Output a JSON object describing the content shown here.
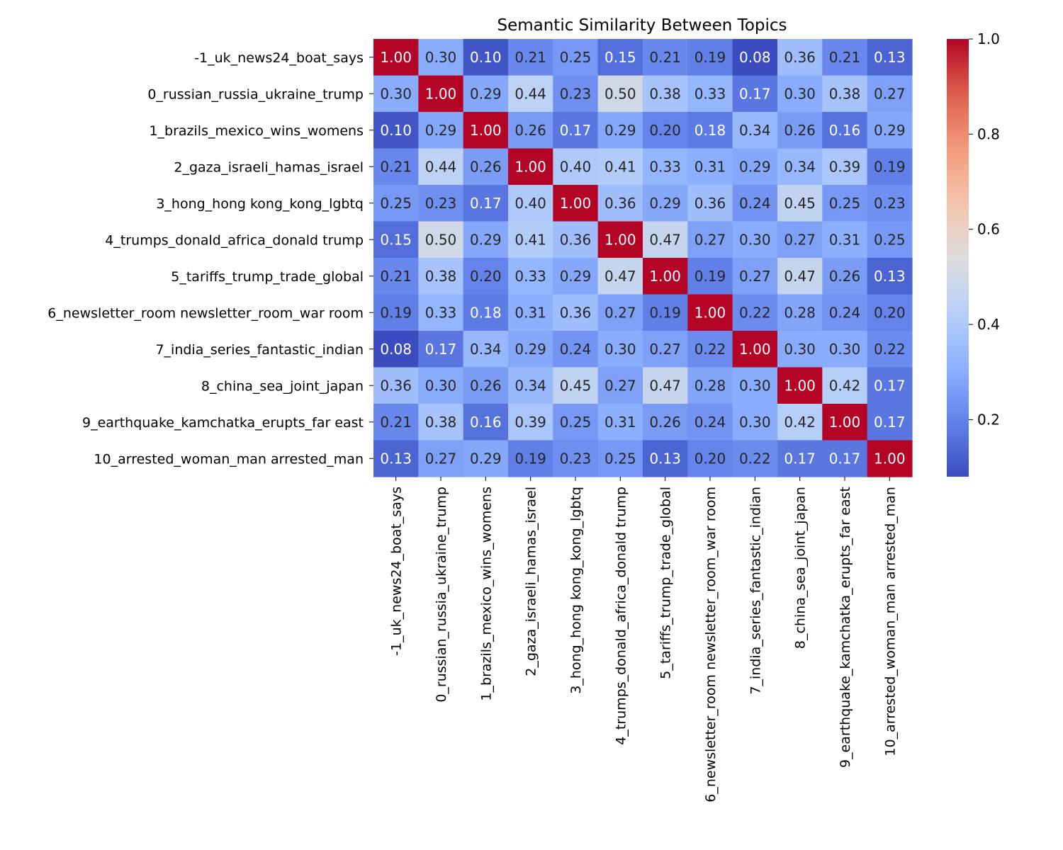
{
  "chart_data": {
    "type": "heatmap",
    "title": "Semantic Similarity Between Topics",
    "xlabel": "",
    "ylabel": "",
    "colormap": "coolwarm",
    "annotation_format": "0.00",
    "labels": [
      "-1_uk_news24_boat_says",
      "0_russian_russia_ukraine_trump",
      "1_brazils_mexico_wins_womens",
      "2_gaza_israeli_hamas_israel",
      "3_hong_hong kong_kong_lgbtq",
      "4_trumps_donald_africa_donald trump",
      "5_tariffs_trump_trade_global",
      "6_newsletter_room newsletter_room_war room",
      "7_india_series_fantastic_indian",
      "8_china_sea_joint_japan",
      "9_earthquake_kamchatka_erupts_far east",
      "10_arrested_woman_man arrested_man"
    ],
    "values": [
      [
        1.0,
        0.3,
        0.1,
        0.21,
        0.25,
        0.15,
        0.21,
        0.19,
        0.08,
        0.36,
        0.21,
        0.13
      ],
      [
        0.3,
        1.0,
        0.29,
        0.44,
        0.23,
        0.5,
        0.38,
        0.33,
        0.17,
        0.3,
        0.38,
        0.27
      ],
      [
        0.1,
        0.29,
        1.0,
        0.26,
        0.17,
        0.29,
        0.2,
        0.18,
        0.34,
        0.26,
        0.16,
        0.29
      ],
      [
        0.21,
        0.44,
        0.26,
        1.0,
        0.4,
        0.41,
        0.33,
        0.31,
        0.29,
        0.34,
        0.39,
        0.19
      ],
      [
        0.25,
        0.23,
        0.17,
        0.4,
        1.0,
        0.36,
        0.29,
        0.36,
        0.24,
        0.45,
        0.25,
        0.23
      ],
      [
        0.15,
        0.5,
        0.29,
        0.41,
        0.36,
        1.0,
        0.47,
        0.27,
        0.3,
        0.27,
        0.31,
        0.25
      ],
      [
        0.21,
        0.38,
        0.2,
        0.33,
        0.29,
        0.47,
        1.0,
        0.19,
        0.27,
        0.47,
        0.26,
        0.13
      ],
      [
        0.19,
        0.33,
        0.18,
        0.31,
        0.36,
        0.27,
        0.19,
        1.0,
        0.22,
        0.28,
        0.24,
        0.2
      ],
      [
        0.08,
        0.17,
        0.34,
        0.29,
        0.24,
        0.3,
        0.27,
        0.22,
        1.0,
        0.3,
        0.3,
        0.22
      ],
      [
        0.36,
        0.3,
        0.26,
        0.34,
        0.45,
        0.27,
        0.47,
        0.28,
        0.3,
        1.0,
        0.42,
        0.17
      ],
      [
        0.21,
        0.38,
        0.16,
        0.39,
        0.25,
        0.31,
        0.26,
        0.24,
        0.3,
        0.42,
        1.0,
        0.17
      ],
      [
        0.13,
        0.27,
        0.29,
        0.19,
        0.23,
        0.25,
        0.13,
        0.2,
        0.22,
        0.17,
        0.17,
        1.0
      ]
    ],
    "colorbar": {
      "range": [
        0.08,
        1.0
      ],
      "ticks": [
        0.2,
        0.4,
        0.6,
        0.8,
        1.0
      ],
      "tick_labels": [
        "0.2",
        "0.4",
        "0.6",
        "0.8",
        "1.0"
      ]
    }
  }
}
